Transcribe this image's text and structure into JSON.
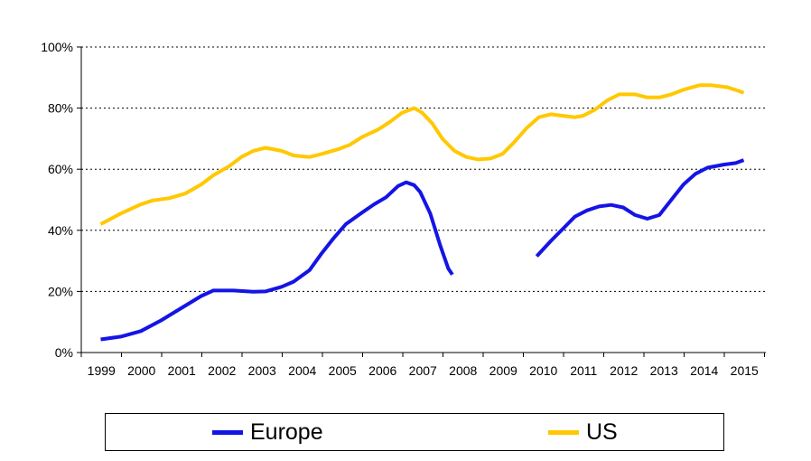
{
  "chart_data": {
    "type": "line",
    "title": "",
    "xlabel": "",
    "ylabel": "",
    "ylim": [
      0,
      100
    ],
    "y_ticks": [
      0,
      20,
      40,
      60,
      80,
      100
    ],
    "y_tick_labels": [
      "0%",
      "20%",
      "40%",
      "60%",
      "80%",
      "100%"
    ],
    "x_range": [
      1999,
      2015.4
    ],
    "x_tick_labels": [
      "1999",
      "2000",
      "2001",
      "2002",
      "2003",
      "2004",
      "2005",
      "2006",
      "2007",
      "2008",
      "2009",
      "2010",
      "2011",
      "2012",
      "2013",
      "2014",
      "2015"
    ],
    "grid": "horizontal dotted",
    "legend_position": "bottom",
    "series": [
      {
        "name": "Europe",
        "color": "#1414e6",
        "segments": [
          [
            [
              1999.0,
              4.3
            ],
            [
              1999.5,
              5.2
            ],
            [
              2000.0,
              7.0
            ],
            [
              2000.5,
              10.5
            ],
            [
              2001.0,
              14.5
            ],
            [
              2001.5,
              18.5
            ],
            [
              2001.8,
              20.3
            ],
            [
              2002.3,
              20.3
            ],
            [
              2002.8,
              19.9
            ],
            [
              2003.1,
              20.0
            ],
            [
              2003.5,
              21.5
            ],
            [
              2003.8,
              23.2
            ],
            [
              2004.2,
              27.0
            ],
            [
              2004.5,
              32.5
            ],
            [
              2004.8,
              37.5
            ],
            [
              2005.1,
              42.0
            ],
            [
              2005.5,
              45.8
            ],
            [
              2005.8,
              48.5
            ],
            [
              2006.1,
              50.8
            ],
            [
              2006.4,
              54.5
            ],
            [
              2006.6,
              55.7
            ],
            [
              2006.8,
              54.8
            ],
            [
              2006.95,
              52.5
            ],
            [
              2007.2,
              45.5
            ],
            [
              2007.45,
              35.0
            ],
            [
              2007.65,
              27.5
            ],
            [
              2007.75,
              25.5
            ]
          ],
          [
            [
              2009.85,
              31.5
            ],
            [
              2010.2,
              36.5
            ],
            [
              2010.5,
              40.5
            ],
            [
              2010.8,
              44.5
            ],
            [
              2011.1,
              46.5
            ],
            [
              2011.4,
              47.8
            ],
            [
              2011.7,
              48.3
            ],
            [
              2012.0,
              47.5
            ],
            [
              2012.3,
              45.0
            ],
            [
              2012.6,
              43.8
            ],
            [
              2012.9,
              45.0
            ],
            [
              2013.2,
              50.0
            ],
            [
              2013.5,
              55.0
            ],
            [
              2013.8,
              58.5
            ],
            [
              2014.1,
              60.5
            ],
            [
              2014.5,
              61.5
            ],
            [
              2014.8,
              62.0
            ],
            [
              2015.0,
              63.0
            ]
          ]
        ]
      },
      {
        "name": "US",
        "color": "#ffc800",
        "segments": [
          [
            [
              1999.0,
              42.0
            ],
            [
              1999.5,
              45.5
            ],
            [
              2000.0,
              48.5
            ],
            [
              2000.3,
              49.8
            ],
            [
              2000.7,
              50.5
            ],
            [
              2001.1,
              52.0
            ],
            [
              2001.5,
              55.0
            ],
            [
              2001.8,
              58.0
            ],
            [
              2002.2,
              61.0
            ],
            [
              2002.5,
              64.0
            ],
            [
              2002.8,
              66.0
            ],
            [
              2003.1,
              67.0
            ],
            [
              2003.5,
              66.0
            ],
            [
              2003.8,
              64.5
            ],
            [
              2004.2,
              64.0
            ],
            [
              2004.5,
              65.0
            ],
            [
              2004.9,
              66.5
            ],
            [
              2005.2,
              68.0
            ],
            [
              2005.5,
              70.5
            ],
            [
              2005.9,
              73.0
            ],
            [
              2006.2,
              75.5
            ],
            [
              2006.5,
              78.5
            ],
            [
              2006.8,
              80.0
            ],
            [
              2007.0,
              78.5
            ],
            [
              2007.25,
              75.0
            ],
            [
              2007.5,
              70.0
            ],
            [
              2007.8,
              66.0
            ],
            [
              2008.1,
              64.0
            ],
            [
              2008.4,
              63.2
            ],
            [
              2008.7,
              63.5
            ],
            [
              2009.0,
              65.0
            ],
            [
              2009.3,
              69.0
            ],
            [
              2009.6,
              73.5
            ],
            [
              2009.9,
              77.0
            ],
            [
              2010.2,
              78.0
            ],
            [
              2010.5,
              77.5
            ],
            [
              2010.8,
              77.0
            ],
            [
              2011.0,
              77.5
            ],
            [
              2011.3,
              79.5
            ],
            [
              2011.6,
              82.5
            ],
            [
              2011.9,
              84.5
            ],
            [
              2012.3,
              84.5
            ],
            [
              2012.6,
              83.5
            ],
            [
              2012.9,
              83.5
            ],
            [
              2013.2,
              84.5
            ],
            [
              2013.5,
              86.0
            ],
            [
              2013.9,
              87.5
            ],
            [
              2014.2,
              87.5
            ],
            [
              2014.6,
              86.8
            ],
            [
              2014.9,
              85.5
            ],
            [
              2015.0,
              85.0
            ]
          ]
        ]
      }
    ]
  }
}
